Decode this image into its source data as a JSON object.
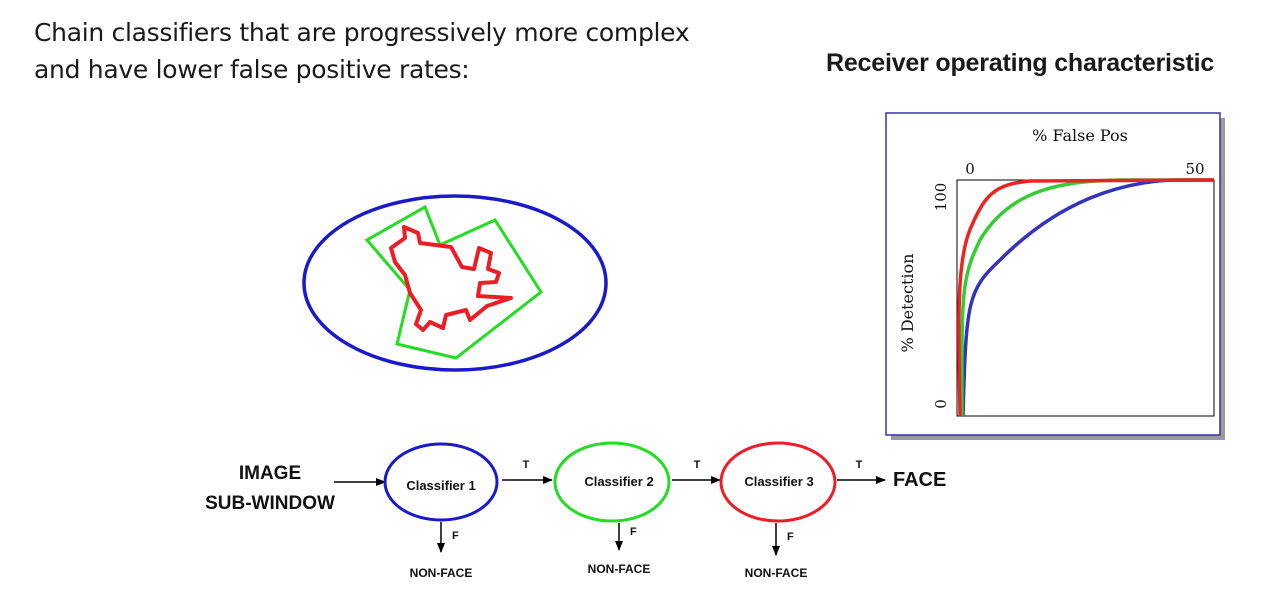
{
  "heading": {
    "line1": "Chain classifiers that are progressively more complex",
    "line2": "and have lower false positive rates:"
  },
  "roc": {
    "title": "Receiver operating characteristic",
    "x_label": "% False Pos",
    "y_label": "% Detection",
    "x_tick_0": "0",
    "x_tick_50": "50",
    "y_tick_100": "100",
    "y_tick_0": "0",
    "colors": {
      "classifier_1": "#3333bb",
      "classifier_2": "#33cc33",
      "classifier_3": "#ee2222"
    }
  },
  "cascade": {
    "input_line1": "IMAGE",
    "input_line2": "SUB-WINDOW",
    "classifiers": [
      {
        "label": "Classifier 1",
        "color": "#1a1acc"
      },
      {
        "label": "Classifier 2",
        "color": "#22dd22"
      },
      {
        "label": "Classifier 3",
        "color": "#ee1c24"
      }
    ],
    "true_label": "T",
    "false_label": "F",
    "reject_label": "NON-FACE",
    "output_label": "FACE"
  },
  "region_illustration": {
    "outer_color": "#1a1acc",
    "middle_color": "#22dd22",
    "inner_color": "#ee1c24"
  }
}
